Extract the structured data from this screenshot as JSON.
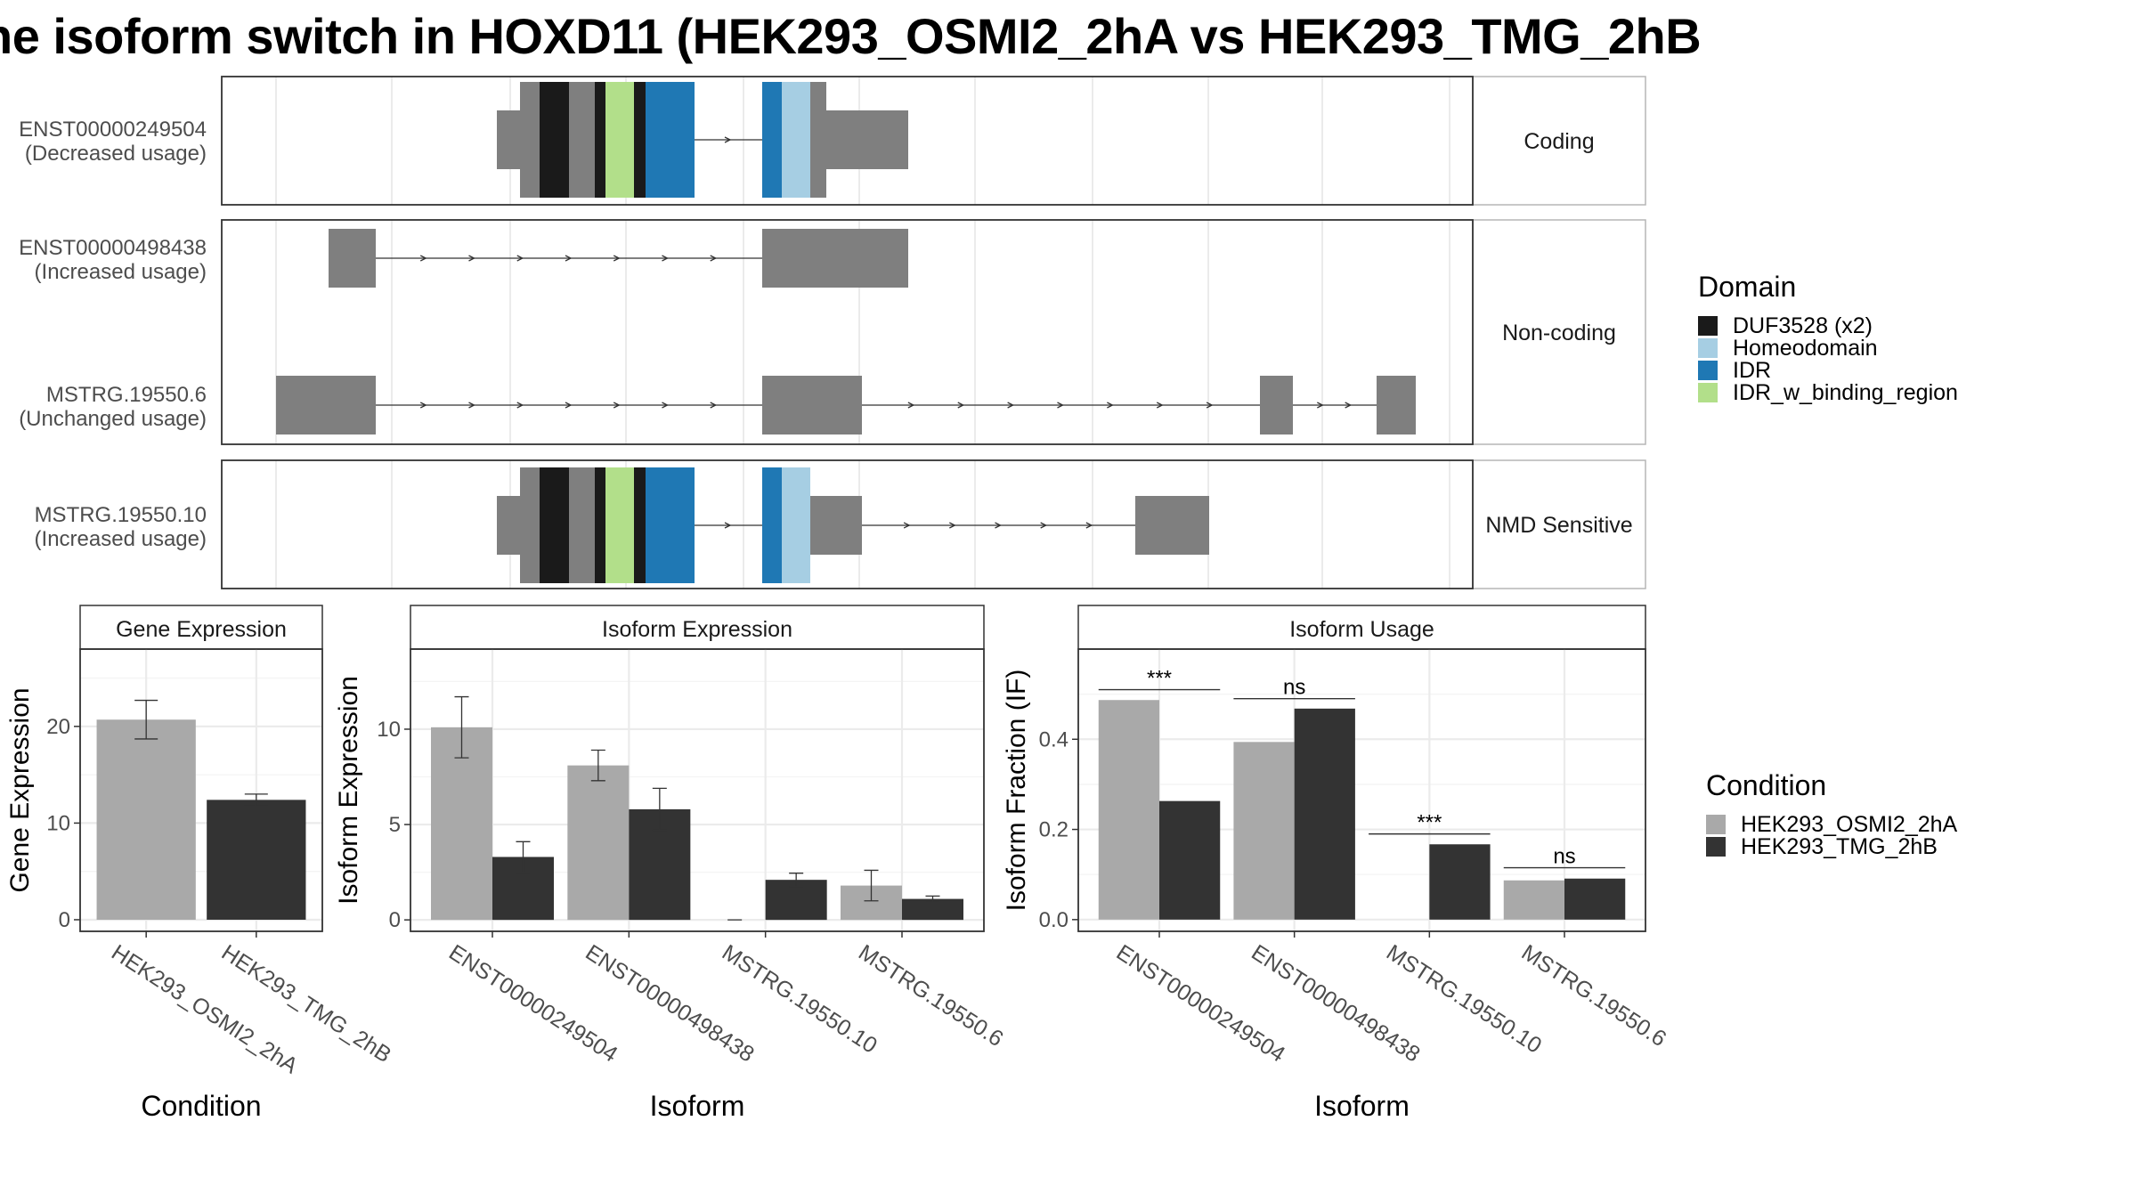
{
  "title": "he isoform switch in HOXD11 (HEK293_OSMI2_2hA vs HEK293_TMG_2hB",
  "colors": {
    "exon": "#7f7f7f",
    "DUF3528 (x2)": "#1a1a1a",
    "Homeodomain": "#a6cee3",
    "IDR": "#1f78b4",
    "IDR_w_binding_region": "#b2df8a",
    "cond1": "#a9a9a9",
    "cond2": "#333333"
  },
  "transcript_panels": [
    {
      "strip": "Coding",
      "transcripts": [
        {
          "id": "ENST00000249504",
          "usage": "(Decreased usage)"
        }
      ]
    },
    {
      "strip": "Non-coding",
      "transcripts": [
        {
          "id": "ENST00000498438",
          "usage": "(Increased usage)"
        },
        {
          "id": "MSTRG.19550.6",
          "usage": "(Unchanged usage)"
        }
      ]
    },
    {
      "strip": "NMD Sensitive",
      "transcripts": [
        {
          "id": "MSTRG.19550.10",
          "usage": "(Increased usage)"
        }
      ]
    }
  ],
  "domain_legend": {
    "title": "Domain",
    "items": [
      "DUF3528 (x2)",
      "Homeodomain",
      "IDR",
      "IDR_w_binding_region"
    ]
  },
  "condition_legend": {
    "title": "Condition",
    "items": [
      "HEK293_OSMI2_2hA",
      "HEK293_TMG_2hB"
    ]
  },
  "chart_data": [
    {
      "type": "bar",
      "title": "Gene Expression",
      "xlabel": "Condition",
      "ylabel": "Gene Expression",
      "categories": [
        "HEK293_OSMI2_2hA",
        "HEK293_TMG_2hB"
      ],
      "values": [
        20.7,
        12.4
      ],
      "errors": [
        2.0,
        0.6
      ],
      "ylim": [
        -1.2,
        28
      ],
      "yticks": [
        0,
        10,
        20
      ]
    },
    {
      "type": "bar",
      "title": "Isoform Expression",
      "xlabel": "Isoform",
      "ylabel": "Isoform Expression",
      "categories": [
        "ENST00000249504",
        "ENST00000498438",
        "MSTRG.19550.10",
        "MSTRG.19550.6"
      ],
      "series": [
        {
          "name": "HEK293_OSMI2_2hA",
          "values": [
            10.1,
            8.1,
            0.0,
            1.8
          ],
          "errors": [
            1.6,
            0.8,
            0.0,
            0.8
          ]
        },
        {
          "name": "HEK293_TMG_2hB",
          "values": [
            3.3,
            5.8,
            2.1,
            1.1
          ],
          "errors": [
            0.8,
            1.1,
            0.35,
            0.15
          ]
        }
      ],
      "ylim": [
        -0.6,
        14.2
      ],
      "yticks": [
        0,
        5,
        10
      ]
    },
    {
      "type": "bar",
      "title": "Isoform Usage",
      "xlabel": "Isoform",
      "ylabel": "Isoform Fraction (IF)",
      "categories": [
        "ENST00000249504",
        "ENST00000498438",
        "MSTRG.19550.10",
        "MSTRG.19550.6"
      ],
      "series": [
        {
          "name": "HEK293_OSMI2_2hA",
          "values": [
            0.487,
            0.394,
            0.0,
            0.087
          ]
        },
        {
          "name": "HEK293_TMG_2hB",
          "values": [
            0.263,
            0.468,
            0.167,
            0.091
          ]
        }
      ],
      "significance": [
        {
          "label": "***",
          "y": 0.51
        },
        {
          "label": "ns",
          "y": 0.49
        },
        {
          "label": "***",
          "y": 0.19
        },
        {
          "label": "ns",
          "y": 0.115
        }
      ],
      "ylim": [
        -0.026,
        0.6
      ],
      "yticks": [
        "0.0",
        "0.2",
        "0.4"
      ]
    }
  ]
}
